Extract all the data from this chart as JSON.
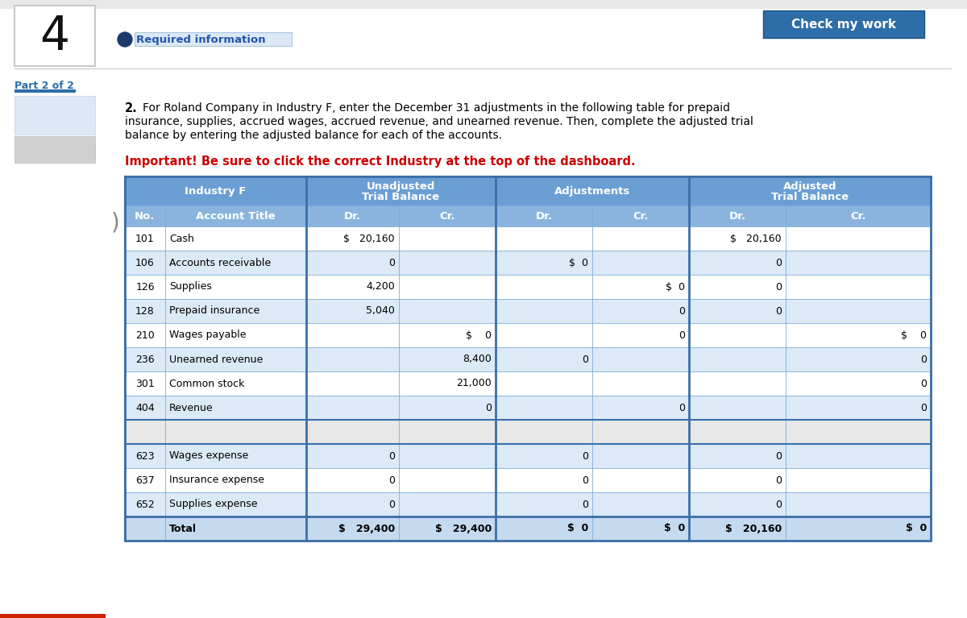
{
  "page_number": "4",
  "part_label": "Part 2 of 2",
  "required_info_label": "Required information",
  "check_my_work_label": "Check my work",
  "rows": [
    {
      "no": "101",
      "title": "Cash",
      "utb_dr": "$   20,160",
      "utb_cr": "",
      "adj_dr": "",
      "adj_cr": "",
      "atb_dr": "$   20,160",
      "atb_cr": ""
    },
    {
      "no": "106",
      "title": "Accounts receivable",
      "utb_dr": "0",
      "utb_cr": "",
      "adj_dr": "$  0",
      "adj_cr": "",
      "atb_dr": "0",
      "atb_cr": ""
    },
    {
      "no": "126",
      "title": "Supplies",
      "utb_dr": "4,200",
      "utb_cr": "",
      "adj_dr": "",
      "adj_cr": "$  0",
      "atb_dr": "0",
      "atb_cr": ""
    },
    {
      "no": "128",
      "title": "Prepaid insurance",
      "utb_dr": "5,040",
      "utb_cr": "",
      "adj_dr": "",
      "adj_cr": "0",
      "atb_dr": "0",
      "atb_cr": ""
    },
    {
      "no": "210",
      "title": "Wages payable",
      "utb_dr": "",
      "utb_cr": "$    0",
      "adj_dr": "",
      "adj_cr": "0",
      "atb_dr": "",
      "atb_cr": "$    0"
    },
    {
      "no": "236",
      "title": "Unearned revenue",
      "utb_dr": "",
      "utb_cr": "8,400",
      "adj_dr": "0",
      "adj_cr": "",
      "atb_dr": "",
      "atb_cr": "0"
    },
    {
      "no": "301",
      "title": "Common stock",
      "utb_dr": "",
      "utb_cr": "21,000",
      "adj_dr": "",
      "adj_cr": "",
      "atb_dr": "",
      "atb_cr": "0"
    },
    {
      "no": "404",
      "title": "Revenue",
      "utb_dr": "",
      "utb_cr": "0",
      "adj_dr": "",
      "adj_cr": "0",
      "atb_dr": "",
      "atb_cr": "0"
    },
    {
      "no": "",
      "title": "",
      "utb_dr": "",
      "utb_cr": "",
      "adj_dr": "",
      "adj_cr": "",
      "atb_dr": "",
      "atb_cr": ""
    },
    {
      "no": "623",
      "title": "Wages expense",
      "utb_dr": "0",
      "utb_cr": "",
      "adj_dr": "0",
      "adj_cr": "",
      "atb_dr": "0",
      "atb_cr": ""
    },
    {
      "no": "637",
      "title": "Insurance expense",
      "utb_dr": "0",
      "utb_cr": "",
      "adj_dr": "0",
      "adj_cr": "",
      "atb_dr": "0",
      "atb_cr": ""
    },
    {
      "no": "652",
      "title": "Supplies expense",
      "utb_dr": "0",
      "utb_cr": "",
      "adj_dr": "0",
      "adj_cr": "",
      "atb_dr": "0",
      "atb_cr": ""
    },
    {
      "no": "",
      "title": "Total",
      "utb_dr": "$   29,400",
      "utb_cr": "$   29,400",
      "adj_dr": "$  0",
      "adj_cr": "$  0",
      "atb_dr": "$   20,160",
      "atb_cr": "$  0"
    }
  ],
  "header_bg": "#6b9fd4",
  "subheader_bg": "#8ab4de",
  "row_alt_bg": "#dce9f7",
  "row_white_bg": "#ffffff",
  "total_bg": "#c5d9ef",
  "border_dark": "#3a6fa8",
  "border_light": "#7aaad4",
  "header_text": "#ffffff",
  "body_text": "#000000",
  "important_color": "#cc0000",
  "btn_bg": "#2d6da8",
  "btn_text": "#ffffff",
  "part_text_color": "#2d6da8",
  "part_underline": "#2d6da8",
  "instr_bold_text": "2.",
  "instr_lines": [
    "For Roland Company in Industry F, enter the December 31 adjustments in the following table for prepaid",
    "insurance, supplies, accrued wages, accrued revenue, and unearned revenue. Then, complete the adjusted trial",
    "balance by entering the adjusted balance for each of the accounts."
  ],
  "important_text": "Important! Be sure to click the correct Industry at the top of the dashboard."
}
